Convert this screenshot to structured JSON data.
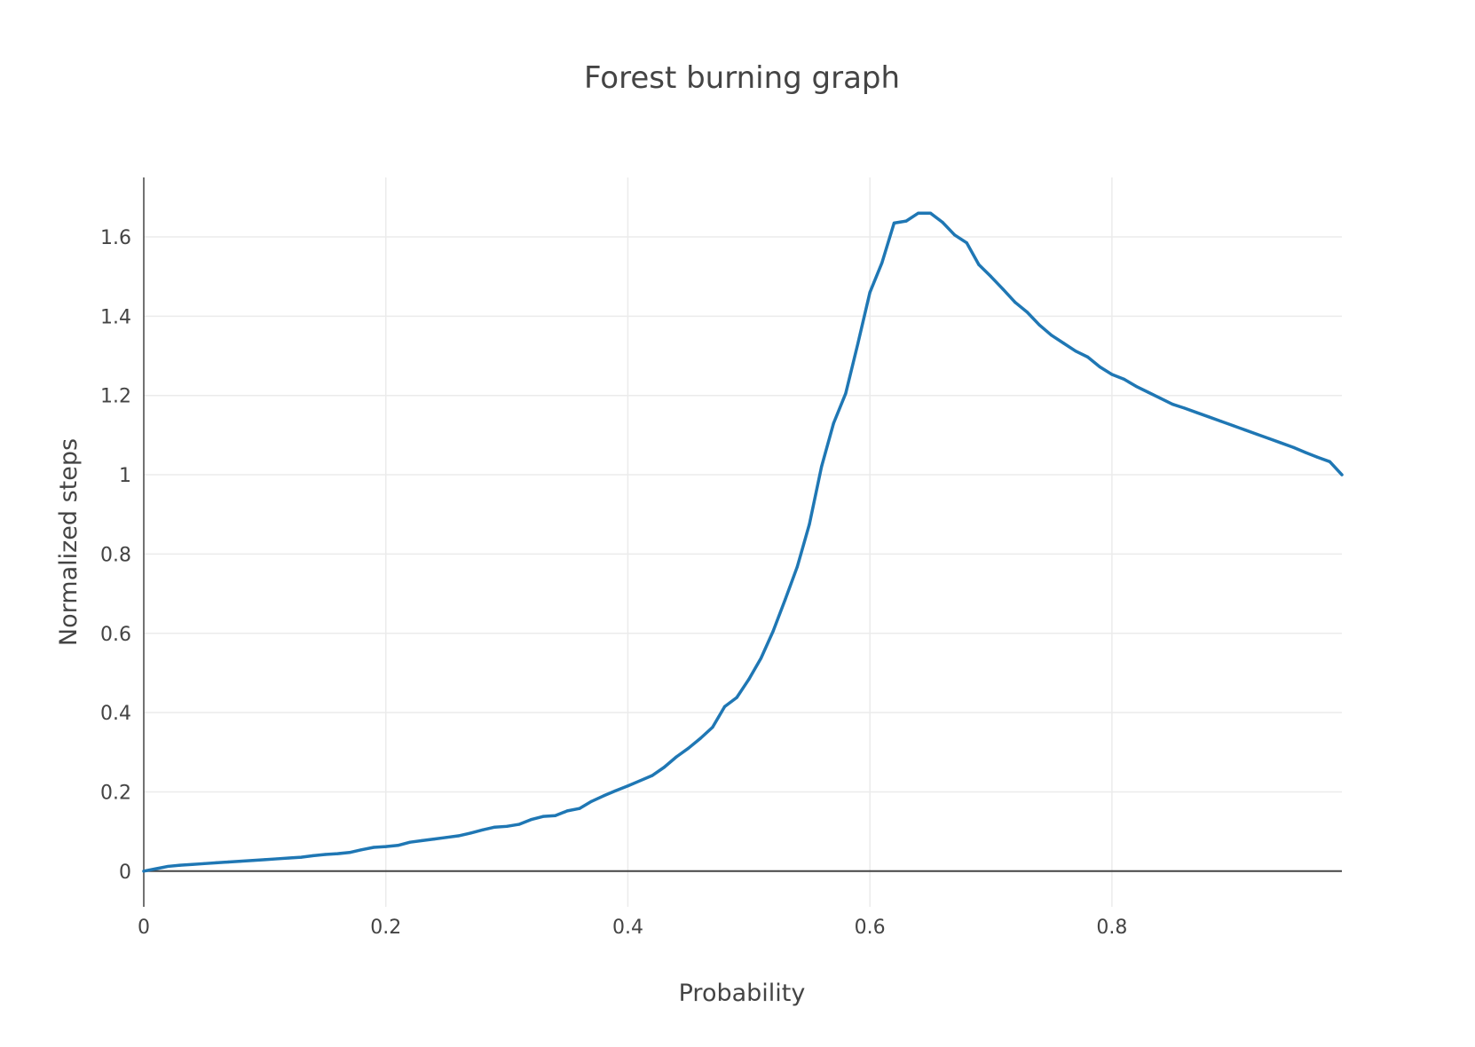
{
  "chart_data": {
    "type": "line",
    "title": "Forest burning graph",
    "xlabel": "Probability",
    "ylabel": "Normalized steps",
    "xlim": [
      0,
      0.99
    ],
    "ylim": [
      -0.09,
      1.75
    ],
    "xticks": [
      0,
      0.2,
      0.4,
      0.6,
      0.8
    ],
    "xtick_labels": [
      "0",
      "0.2",
      "0.4",
      "0.6",
      "0.8"
    ],
    "yticks": [
      0,
      0.2,
      0.4,
      0.6,
      0.8,
      1,
      1.2,
      1.4,
      1.6
    ],
    "ytick_labels": [
      "0",
      "0.2",
      "0.4",
      "0.6",
      "0.8",
      "1",
      "1.2",
      "1.4",
      "1.6"
    ],
    "grid": true,
    "line_color": "#1f77b4",
    "series": [
      {
        "x": [
          0,
          0.01,
          0.02,
          0.03,
          0.04,
          0.05,
          0.06,
          0.07,
          0.08,
          0.09,
          0.1,
          0.11,
          0.12,
          0.13,
          0.14,
          0.15,
          0.16,
          0.17,
          0.18,
          0.19,
          0.2,
          0.21,
          0.22,
          0.23,
          0.24,
          0.25,
          0.26,
          0.27,
          0.28,
          0.29,
          0.3,
          0.31,
          0.32,
          0.33,
          0.34,
          0.35,
          0.36,
          0.37,
          0.38,
          0.39,
          0.4,
          0.41,
          0.42,
          0.43,
          0.44,
          0.45,
          0.46,
          0.47,
          0.48,
          0.49,
          0.5,
          0.51,
          0.52,
          0.53,
          0.54,
          0.55,
          0.56,
          0.57,
          0.58,
          0.59,
          0.6,
          0.61,
          0.62,
          0.63,
          0.64,
          0.65,
          0.66,
          0.67,
          0.68,
          0.69,
          0.7,
          0.71,
          0.72,
          0.73,
          0.74,
          0.75,
          0.76,
          0.77,
          0.78,
          0.79,
          0.8,
          0.81,
          0.82,
          0.83,
          0.84,
          0.85,
          0.86,
          0.87,
          0.88,
          0.89,
          0.9,
          0.91,
          0.92,
          0.93,
          0.94,
          0.95,
          0.96,
          0.97,
          0.98,
          0.99
        ],
        "y": [
          0,
          0.006,
          0.012,
          0.015,
          0.017,
          0.019,
          0.021,
          0.023,
          0.025,
          0.027,
          0.029,
          0.031,
          0.033,
          0.035,
          0.039,
          0.042,
          0.044,
          0.047,
          0.054,
          0.06,
          0.062,
          0.065,
          0.073,
          0.077,
          0.081,
          0.085,
          0.089,
          0.096,
          0.104,
          0.111,
          0.113,
          0.118,
          0.13,
          0.138,
          0.14,
          0.152,
          0.158,
          0.176,
          0.19,
          0.203,
          0.215,
          0.228,
          0.241,
          0.262,
          0.288,
          0.31,
          0.335,
          0.363,
          0.415,
          0.438,
          0.484,
          0.537,
          0.605,
          0.685,
          0.768,
          0.875,
          1.02,
          1.13,
          1.205,
          1.33,
          1.46,
          1.535,
          1.635,
          1.64,
          1.66,
          1.66,
          1.637,
          1.605,
          1.585,
          1.53,
          1.5,
          1.468,
          1.435,
          1.41,
          1.378,
          1.352,
          1.332,
          1.312,
          1.297,
          1.272,
          1.253,
          1.241,
          1.223,
          1.208,
          1.193,
          1.178,
          1.168,
          1.157,
          1.146,
          1.135,
          1.124,
          1.113,
          1.102,
          1.091,
          1.08,
          1.069,
          1.056,
          1.044,
          1.033,
          1.0
        ]
      }
    ]
  }
}
